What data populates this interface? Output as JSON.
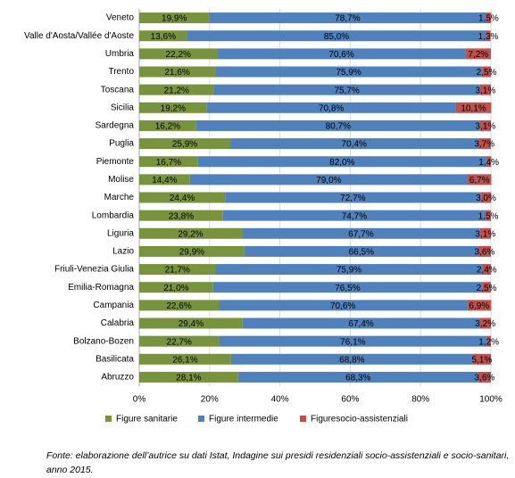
{
  "chart_data": {
    "type": "stacked-bar-horizontal",
    "categories": [
      "Veneto",
      "Valle d'Aosta/Vallée d'Aoste",
      "Umbria",
      "Trento",
      "Toscana",
      "Sicilia",
      "Sardegna",
      "Puglia",
      "Piemonte",
      "Molise",
      "Marche",
      "Lombardia",
      "Liguria",
      "Lazio",
      "Friuli-Venezia Giulia",
      "Emilia-Romagna",
      "Campania",
      "Calabria",
      "Bolzano-Bozen",
      "Basilicata",
      "Abruzzo"
    ],
    "series": [
      {
        "name": "Figure sanitarie",
        "color": "#77933c",
        "values": [
          19.9,
          13.6,
          22.2,
          21.6,
          21.2,
          19.2,
          16.2,
          25.9,
          16.7,
          14.4,
          24.4,
          23.8,
          29.2,
          29.9,
          21.7,
          21.0,
          22.6,
          29.4,
          22.7,
          26.1,
          28.1
        ],
        "value_labels": [
          "19,9%",
          "13,6%",
          "22,2%",
          "21,6%",
          "21,2%",
          "19,2%",
          "16,2%",
          "25,9%",
          "16,7%",
          "14,4%",
          "24,4%",
          "23,8%",
          "29,2%",
          "29,9%",
          "21,7%",
          "21,0%",
          "22,6%",
          "29,4%",
          "22,7%",
          "26,1%",
          "28,1%"
        ]
      },
      {
        "name": "Figure intermedie",
        "color": "#4f81bd",
        "values": [
          78.7,
          85.0,
          70.6,
          75.9,
          75.7,
          70.8,
          80.7,
          70.4,
          82.0,
          79.0,
          72.7,
          74.7,
          67.7,
          66.5,
          75.9,
          76.5,
          70.6,
          67.4,
          76.1,
          68.8,
          68.3
        ],
        "value_labels": [
          "78,7%",
          "85,0%",
          "70,6%",
          "75,9%",
          "75,7%",
          "70,8%",
          "80,7%",
          "70,4%",
          "82,0%",
          "79,0%",
          "72,7%",
          "74,7%",
          "67,7%",
          "66,5%",
          "75,9%",
          "76,5%",
          "70,6%",
          "67,4%",
          "76,1%",
          "68,8%",
          "68,3%"
        ]
      },
      {
        "name": "Figuresocio-assistenziali",
        "color": "#c0504d",
        "values": [
          1.5,
          1.3,
          7.2,
          2.5,
          3.1,
          10.1,
          3.1,
          3.7,
          1.4,
          6.7,
          3.0,
          1.5,
          3.1,
          3.6,
          2.4,
          2.5,
          6.9,
          3.2,
          1.2,
          5.1,
          3.6
        ],
        "value_labels": [
          "1,5%",
          "1,3%",
          "7,2%",
          "2,5%",
          "3,1%",
          "10,1%",
          "3,1%",
          "3,7%",
          "1,4%",
          "6,7%",
          "3,0%",
          "1,5%",
          "3,1%",
          "3,6%",
          "2,4%",
          "2,5%",
          "6,9%",
          "3,2%",
          "1,2%",
          "5,1%",
          "3,6%"
        ]
      }
    ],
    "xlim": [
      0,
      100
    ],
    "xticks": [
      {
        "value": 0,
        "label": "0%"
      },
      {
        "value": 20,
        "label": "20%"
      },
      {
        "value": 40,
        "label": "40%"
      },
      {
        "value": 60,
        "label": "60%"
      },
      {
        "value": 80,
        "label": "80%"
      },
      {
        "value": 100,
        "label": "100%"
      }
    ],
    "grid": true,
    "legend": "bottom",
    "source": "Fonte: elaborazione dell’autrice su dati Istat, Indagine sui presidi residenziali socio-assistenziali e socio-sanitari, anno 2015."
  }
}
